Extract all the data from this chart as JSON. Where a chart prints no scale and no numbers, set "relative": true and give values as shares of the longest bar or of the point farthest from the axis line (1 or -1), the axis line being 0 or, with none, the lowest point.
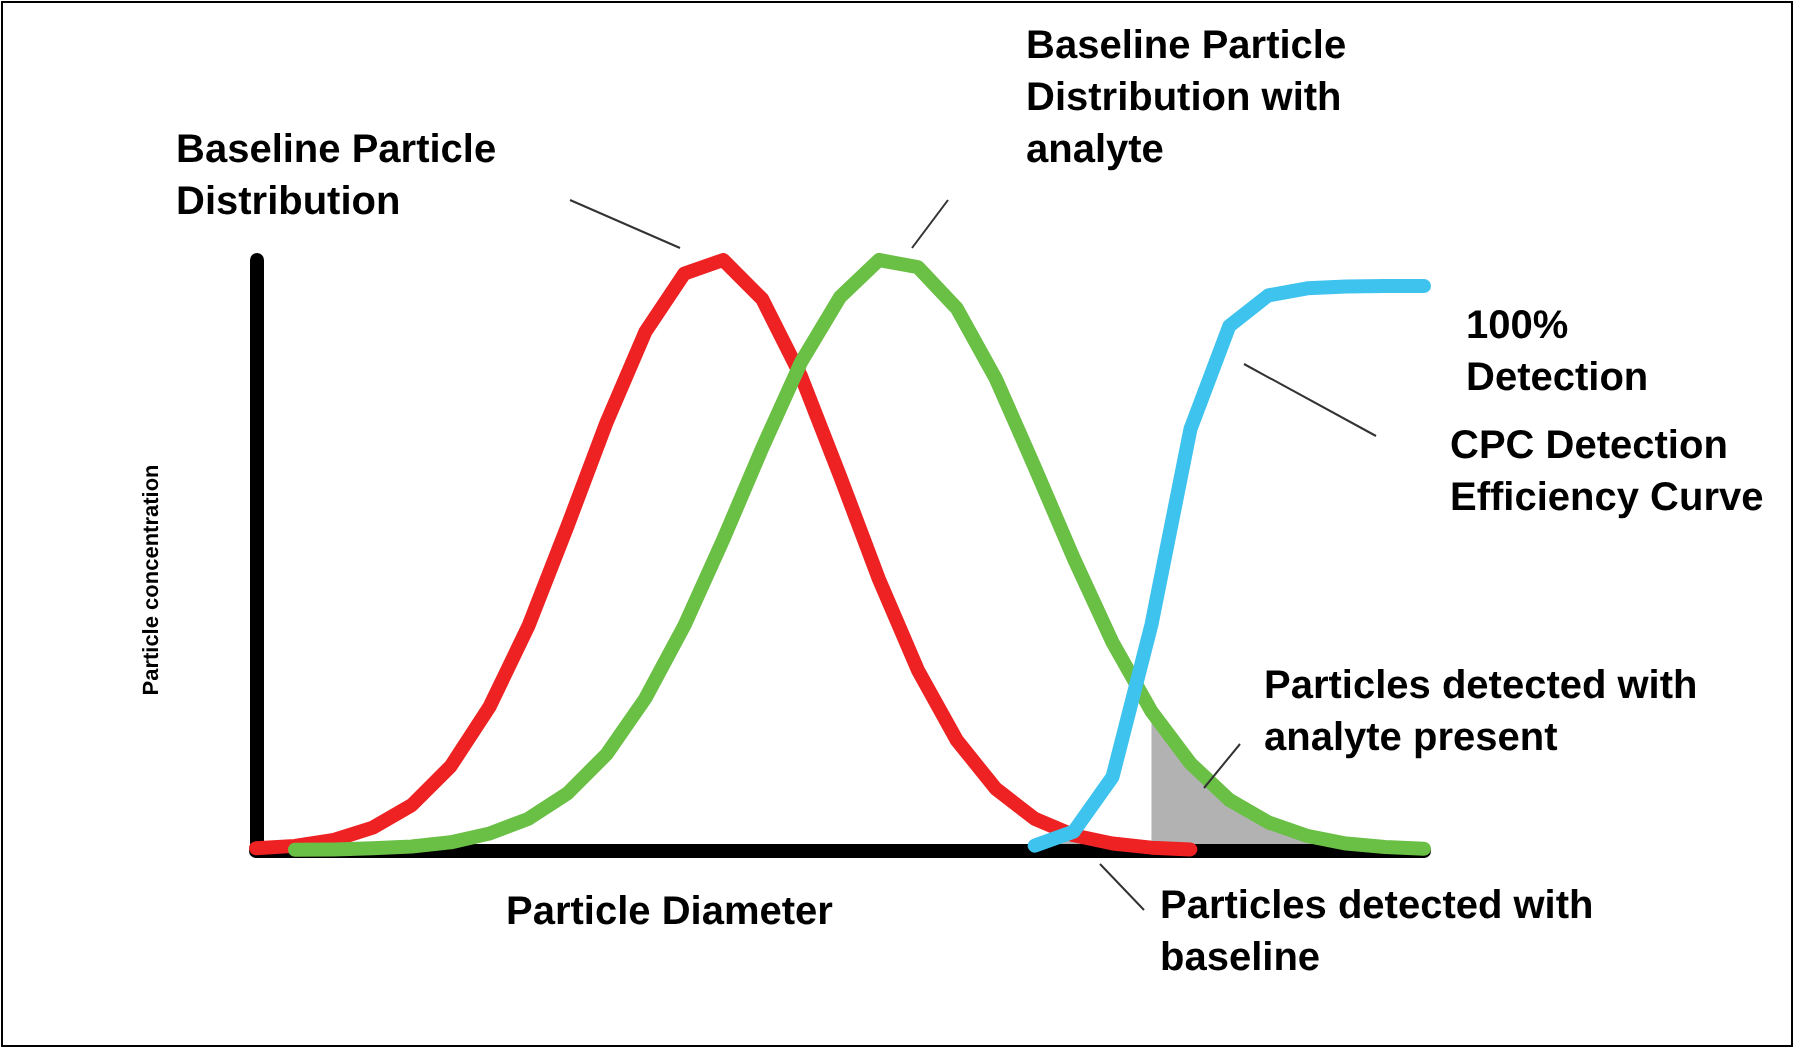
{
  "chart_data": {
    "type": "line",
    "relative": true,
    "xlabel": "Particle Diameter",
    "ylabel": "Particle concentration",
    "marker": "none",
    "line_style": "solid",
    "categories": [
      null,
      null,
      null,
      null,
      null,
      null,
      null,
      null,
      null,
      null,
      null,
      null,
      null,
      null,
      null,
      null,
      null,
      null,
      null,
      null,
      null,
      null,
      null,
      null,
      null,
      null,
      null,
      null,
      null,
      null,
      null
    ],
    "series": [
      {
        "color": "#ee2222",
        "values": [
          0.003,
          0.007,
          0.017,
          0.038,
          0.076,
          0.142,
          0.243,
          0.38,
          0.549,
          0.724,
          0.878,
          0.977,
          1,
          0.934,
          0.803,
          0.634,
          0.459,
          0.305,
          0.186,
          0.104,
          0.053,
          0.025,
          0.011,
          0.004,
          0.001,
          null,
          null,
          null,
          null,
          null,
          null
        ]
      },
      {
        "color": "#6abf45",
        "values": [
          null,
          0.0004,
          0.001,
          0.003,
          0.006,
          0.013,
          0.028,
          0.053,
          0.096,
          0.162,
          0.257,
          0.38,
          0.526,
          0.681,
          0.827,
          0.937,
          1,
          0.988,
          0.918,
          0.799,
          0.649,
          0.495,
          0.352,
          0.235,
          0.147,
          0.085,
          0.047,
          0.024,
          0.011,
          0.005,
          0.002
        ]
      },
      {
        "color": "#3ec3ef",
        "values": [
          null,
          null,
          null,
          null,
          null,
          null,
          null,
          null,
          null,
          null,
          null,
          null,
          null,
          null,
          null,
          null,
          null,
          null,
          null,
          null,
          0.0073,
          0.031,
          0.124,
          0.382,
          0.713,
          0.888,
          0.94,
          0.952,
          0.955,
          0.956,
          0.956
        ]
      },
      {
        "type": "area",
        "color": "#000000",
        "values": [
          null,
          null,
          null,
          null,
          null,
          null,
          null,
          null,
          null,
          null,
          null,
          null,
          null,
          null,
          null,
          null,
          null,
          null,
          null,
          null,
          null,
          null,
          null,
          0.235,
          0.147,
          0.085,
          0.047,
          0.024,
          0.011,
          0.005,
          null
        ]
      },
      {
        "type": "area",
        "color": "#000000",
        "values": [
          null,
          null,
          null,
          null,
          null,
          null,
          null,
          null,
          null,
          null,
          null,
          null,
          null,
          null,
          null,
          null,
          null,
          null,
          null,
          null,
          0.0073,
          0.025,
          0.011,
          null,
          null,
          null,
          null,
          null,
          null,
          null,
          null
        ]
      }
    ],
    "annotations": [
      "Baseline Particle Distribution",
      "Baseline Particle Distribution with analyte",
      "100% Detection",
      "CPC Detection Efficiency Curve",
      "Particles detected with analyte present",
      "Particles detected with baseline"
    ]
  }
}
